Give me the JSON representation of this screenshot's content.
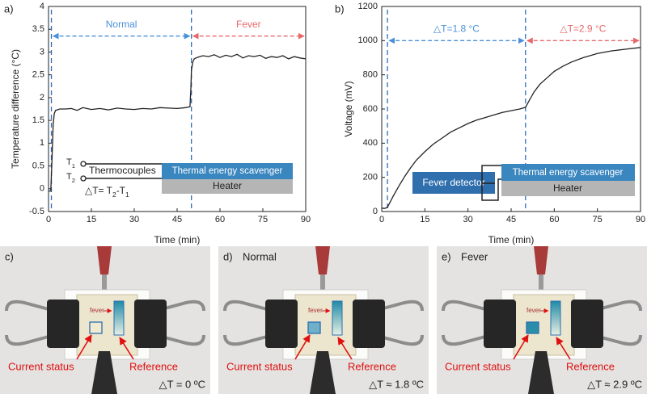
{
  "chart_data": [
    {
      "type": "line",
      "panel": "a)",
      "xlabel": "Time (min)",
      "ylabel": "Temperature difference (°C)",
      "xlim": [
        0,
        90
      ],
      "xticks": [
        0,
        15,
        30,
        45,
        60,
        75,
        90
      ],
      "ylim": [
        -0.5,
        4
      ],
      "yticks": [
        -0.5,
        0,
        0.5,
        1,
        1.5,
        2,
        2.5,
        3,
        3.5,
        4
      ],
      "x": [
        0,
        0.8,
        1.2,
        1.6,
        2,
        2.5,
        3,
        4,
        6,
        8,
        10,
        12,
        15,
        18,
        21,
        24,
        27,
        30,
        33,
        36,
        39,
        42,
        45,
        48,
        49.5,
        49.8,
        50,
        50.5,
        51,
        52,
        54,
        56,
        58,
        60,
        62,
        64,
        66,
        68,
        70,
        72,
        74,
        76,
        78,
        80,
        82,
        84,
        86,
        88,
        90
      ],
      "series": [
        {
          "color": "#222222",
          "values": [
            -0.05,
            -0.05,
            0.6,
            1.4,
            1.65,
            1.72,
            1.73,
            1.75,
            1.75,
            1.76,
            1.72,
            1.78,
            1.74,
            1.76,
            1.73,
            1.77,
            1.75,
            1.74,
            1.76,
            1.75,
            1.78,
            1.77,
            1.76,
            1.78,
            1.8,
            2.2,
            2.6,
            2.78,
            2.85,
            2.88,
            2.92,
            2.9,
            2.94,
            2.88,
            2.93,
            2.9,
            2.95,
            2.87,
            2.92,
            2.9,
            2.93,
            2.86,
            2.9,
            2.88,
            2.92,
            2.85,
            2.9,
            2.87,
            2.85
          ]
        }
      ],
      "ranges": [
        {
          "label": "Normal",
          "from": 1,
          "to": 50,
          "at": 3.35,
          "color": "#4a90d9"
        },
        {
          "label": "Fever",
          "from": 50,
          "to": 90,
          "at": 3.35,
          "color": "#e8686a"
        }
      ],
      "inset": {
        "t1": [
          "T",
          "1"
        ],
        "t2": [
          "T",
          "2"
        ],
        "thermocouples": "Thermocouples",
        "scavenger": "Thermal energy scavenger",
        "heater": "Heater",
        "formula": [
          "△T= T",
          "2",
          "-T",
          "1"
        ]
      }
    },
    {
      "type": "line",
      "panel": "b)",
      "xlabel": "Time (min)",
      "ylabel": "Voltage (mV)",
      "xlim": [
        0,
        90
      ],
      "xticks": [
        0,
        15,
        30,
        45,
        60,
        75,
        90
      ],
      "ylim": [
        0,
        1200
      ],
      "yticks": [
        0,
        200,
        400,
        600,
        800,
        1000,
        1200
      ],
      "x": [
        0,
        1,
        2,
        4,
        6,
        8,
        10,
        12,
        15,
        18,
        21,
        24,
        27,
        30,
        33,
        36,
        39,
        42,
        45,
        48,
        50,
        51,
        53,
        55,
        58,
        60,
        63,
        66,
        70,
        75,
        80,
        85,
        90
      ],
      "series": [
        {
          "color": "#222222",
          "values": [
            20,
            18,
            25,
            90,
            150,
            205,
            255,
            300,
            350,
            395,
            430,
            465,
            490,
            515,
            535,
            550,
            565,
            580,
            590,
            600,
            610,
            640,
            700,
            745,
            790,
            820,
            850,
            875,
            900,
            925,
            940,
            950,
            960
          ]
        }
      ],
      "ranges": [
        {
          "label": "△T=1.8 °C",
          "from": 2,
          "to": 50,
          "at": 1000,
          "color": "#4a90d9"
        },
        {
          "label": "△T=2.9 °C",
          "from": 50,
          "to": 90,
          "at": 1000,
          "color": "#e8686a"
        }
      ],
      "inset": {
        "detector": "Fever detector",
        "scavenger": "Thermal energy scavenger",
        "heater": "Heater"
      }
    }
  ],
  "photos": [
    {
      "panel": "c)",
      "title": "",
      "status_color": "#f2ead0",
      "fever": "fever",
      "current": "Current status",
      "reference": "Reference",
      "dt": "△T = 0 ºC"
    },
    {
      "panel": "d)",
      "title": "Normal",
      "status_color": "#6fb0c8",
      "fever": "fever",
      "current": "Current status",
      "reference": "Reference",
      "dt": "△T ≈ 1.8 ºC"
    },
    {
      "panel": "e)",
      "title": "Fever",
      "status_color": "#2a8ea8",
      "fever": "fever",
      "current": "Current status",
      "reference": "Reference",
      "dt": "△T ≈ 2.9 ºC"
    }
  ]
}
